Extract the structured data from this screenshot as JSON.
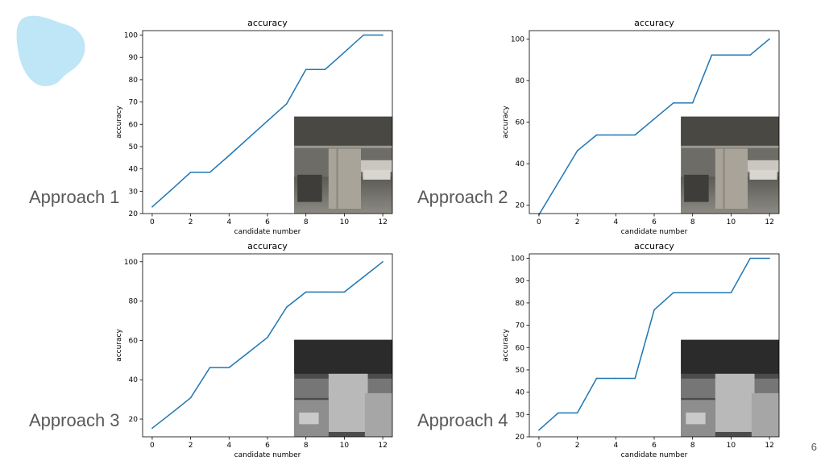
{
  "slide": {
    "page_number": "6",
    "accent_color": "#bee6f6"
  },
  "labels": [
    "Approach 1",
    "Approach 2",
    "Approach 3",
    "Approach 4"
  ],
  "chart_data": [
    {
      "type": "line",
      "title": "accuracy",
      "xlabel": "candidate number",
      "ylabel": "accuracy",
      "xlim": [
        -0.5,
        12.5
      ],
      "ylim": [
        20,
        102
      ],
      "xticks": [
        0,
        2,
        4,
        6,
        8,
        10,
        12
      ],
      "yticks": [
        20,
        30,
        40,
        50,
        60,
        70,
        80,
        90,
        100
      ],
      "x": [
        0,
        1,
        2,
        3,
        4,
        5,
        6,
        7,
        8,
        9,
        10,
        11,
        12
      ],
      "series": [
        {
          "values": [
            23,
            30.7,
            38.5,
            38.5,
            46,
            53.8,
            61.5,
            69.2,
            84.6,
            84.6,
            92.3,
            100,
            100
          ],
          "color": "#1f77b4"
        }
      ],
      "inset": {
        "kind": "photo",
        "description": "parking garage"
      }
    },
    {
      "type": "line",
      "title": "accuracy",
      "xlabel": "candidate number",
      "ylabel": "accuracy",
      "xlim": [
        -0.5,
        12.5
      ],
      "ylim": [
        16,
        104
      ],
      "xticks": [
        0,
        2,
        4,
        6,
        8,
        10,
        12
      ],
      "yticks": [
        20,
        40,
        60,
        80,
        100
      ],
      "x": [
        0,
        1,
        2,
        3,
        4,
        5,
        6,
        7,
        8,
        9,
        10,
        11,
        12
      ],
      "series": [
        {
          "values": [
            15.4,
            30.8,
            46.2,
            53.8,
            53.8,
            53.8,
            61.5,
            69.2,
            69.2,
            92.3,
            92.3,
            92.3,
            100
          ],
          "color": "#1f77b4"
        }
      ],
      "inset": {
        "kind": "photo",
        "description": "parking garage"
      }
    },
    {
      "type": "line",
      "title": "accuracy",
      "xlabel": "candidate number",
      "ylabel": "accuracy",
      "xlim": [
        -0.5,
        12.5
      ],
      "ylim": [
        11,
        104
      ],
      "xticks": [
        0,
        2,
        4,
        6,
        8,
        10,
        12
      ],
      "yticks": [
        20,
        40,
        60,
        80,
        100
      ],
      "x": [
        0,
        1,
        2,
        3,
        4,
        5,
        6,
        7,
        8,
        9,
        10,
        11,
        12
      ],
      "series": [
        {
          "values": [
            15.4,
            23,
            30.8,
            46.2,
            46.2,
            53.8,
            61.5,
            76.9,
            84.6,
            84.6,
            84.6,
            92.3,
            100
          ],
          "color": "#1f77b4"
        }
      ],
      "inset": {
        "kind": "grayscale",
        "description": "depth map"
      }
    },
    {
      "type": "line",
      "title": "accuracy",
      "xlabel": "candidate number",
      "ylabel": "accuracy",
      "xlim": [
        -0.5,
        12.5
      ],
      "ylim": [
        20,
        102
      ],
      "xticks": [
        0,
        2,
        4,
        6,
        8,
        10,
        12
      ],
      "yticks": [
        20,
        30,
        40,
        50,
        60,
        70,
        80,
        90,
        100
      ],
      "x": [
        0,
        1,
        2,
        3,
        4,
        5,
        6,
        7,
        8,
        9,
        10,
        11,
        12
      ],
      "series": [
        {
          "values": [
            23,
            30.7,
            30.7,
            46.2,
            46.2,
            46.2,
            76.9,
            84.6,
            84.6,
            84.6,
            84.6,
            100,
            100
          ],
          "color": "#1f77b4"
        }
      ],
      "inset": {
        "kind": "grayscale",
        "description": "depth map"
      }
    }
  ]
}
